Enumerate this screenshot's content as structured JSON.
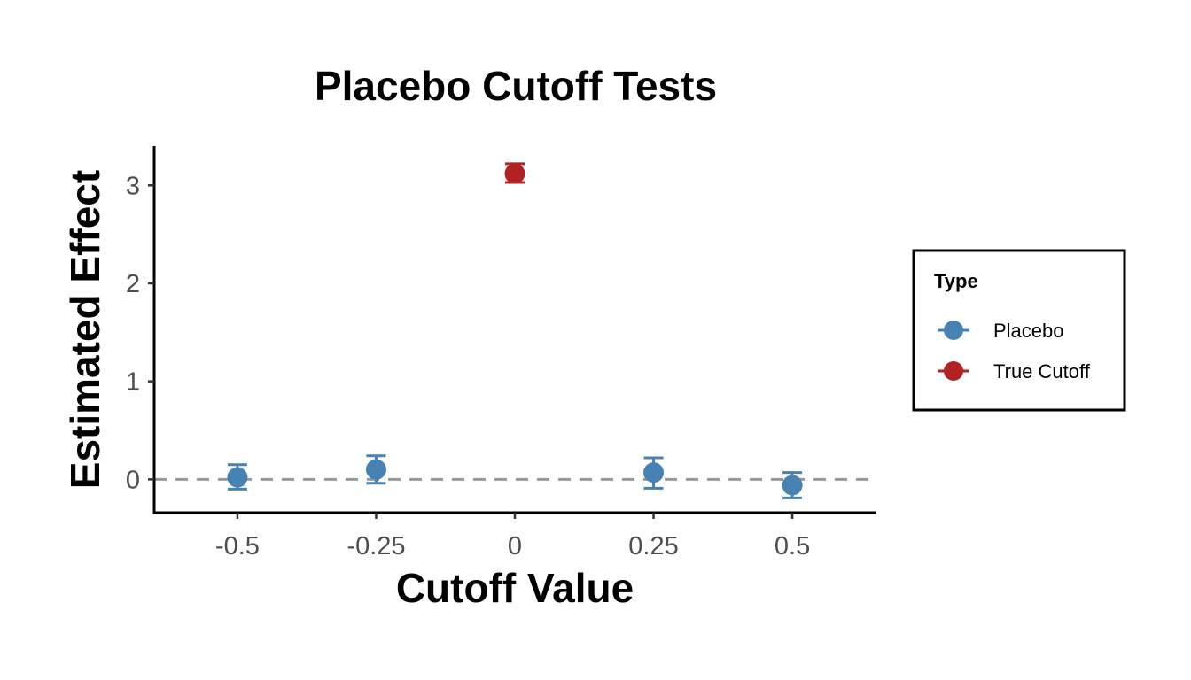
{
  "chart_data": {
    "type": "scatter",
    "title": "Placebo Cutoff Tests",
    "xlabel": "Cutoff Value",
    "ylabel": "Estimated Effect",
    "xlim": [
      -0.65,
      0.65
    ],
    "ylim": [
      -0.34,
      3.4
    ],
    "x_ticks": [
      -0.5,
      -0.25,
      0,
      0.25,
      0.5
    ],
    "x_tick_labels": [
      "-0.5",
      "-0.25",
      "0",
      "0.25",
      "0.5"
    ],
    "y_ticks": [
      0,
      1,
      2,
      3
    ],
    "y_tick_labels": [
      "0",
      "1",
      "2",
      "3"
    ],
    "reference_line": {
      "y": 0,
      "style": "dashed",
      "color": "#999999"
    },
    "grid": false,
    "legend": {
      "title": "Type",
      "placement": "right",
      "entries": [
        "Placebo",
        "True Cutoff"
      ]
    },
    "series": [
      {
        "name": "Placebo",
        "color": "#4682B4",
        "points": [
          {
            "x": -0.5,
            "y": 0.02,
            "lower": -0.1,
            "upper": 0.15
          },
          {
            "x": -0.25,
            "y": 0.1,
            "lower": -0.04,
            "upper": 0.24
          },
          {
            "x": 0.25,
            "y": 0.07,
            "lower": -0.09,
            "upper": 0.22
          },
          {
            "x": 0.5,
            "y": -0.06,
            "lower": -0.19,
            "upper": 0.07
          }
        ]
      },
      {
        "name": "True Cutoff",
        "color": "#B22222",
        "points": [
          {
            "x": 0,
            "y": 3.12,
            "lower": 3.03,
            "upper": 3.22
          }
        ]
      }
    ]
  }
}
